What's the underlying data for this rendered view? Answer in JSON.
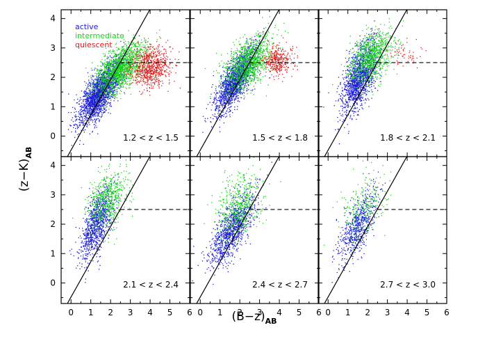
{
  "chart_data": {
    "type": "scatter",
    "title": "",
    "xlabel": "(B−z)",
    "xlabel_sub": "AB",
    "ylabel": "(z−K)",
    "ylabel_sub": "AB",
    "xlim": [
      -0.5,
      6
    ],
    "ylim": [
      -0.7,
      4.3
    ],
    "x_ticks": [
      "0",
      "1",
      "2",
      "3",
      "4",
      "5",
      "6"
    ],
    "y_ticks": [
      "0",
      "1",
      "2",
      "3",
      "4"
    ],
    "legend": {
      "placement": "top-left of first panel",
      "entries": [
        {
          "label": "active",
          "color": "#1c1cd8"
        },
        {
          "label": "intermediate",
          "color": "#19d519"
        },
        {
          "label": "quiescent",
          "color": "#e01c1c"
        }
      ]
    },
    "selection_lines": {
      "diagonal": {
        "slope": 1.2,
        "intercept": -0.48
      },
      "horizontal_dashed": {
        "y": 2.5,
        "x_from": 2.5
      }
    },
    "panels": [
      {
        "label": "1.2 < z < 1.5",
        "clusters": [
          {
            "series": "active",
            "color": "#1c1cd8",
            "n": 2200,
            "cx": 1.5,
            "cy": 1.5,
            "sx": 0.55,
            "sy": 0.55,
            "rho": 0.75
          },
          {
            "series": "intermediate",
            "color": "#19d519",
            "n": 1500,
            "cx": 2.5,
            "cy": 2.3,
            "sx": 0.65,
            "sy": 0.45,
            "rho": 0.6
          },
          {
            "series": "quiescent",
            "color": "#e01c1c",
            "n": 750,
            "cx": 4.0,
            "cy": 2.35,
            "sx": 0.5,
            "sy": 0.35,
            "rho": 0.1
          }
        ]
      },
      {
        "label": "1.5 < z < 1.8",
        "clusters": [
          {
            "series": "active",
            "color": "#1c1cd8",
            "n": 1700,
            "cx": 1.8,
            "cy": 1.9,
            "sx": 0.5,
            "sy": 0.55,
            "rho": 0.75
          },
          {
            "series": "intermediate",
            "color": "#19d519",
            "n": 1200,
            "cx": 2.4,
            "cy": 2.5,
            "sx": 0.6,
            "sy": 0.45,
            "rho": 0.5
          },
          {
            "series": "quiescent",
            "color": "#e01c1c",
            "n": 350,
            "cx": 3.9,
            "cy": 2.55,
            "sx": 0.4,
            "sy": 0.25,
            "rho": 0.0
          }
        ]
      },
      {
        "label": "1.8 < z < 2.1",
        "clusters": [
          {
            "series": "active",
            "color": "#1c1cd8",
            "n": 1500,
            "cx": 1.6,
            "cy": 2.0,
            "sx": 0.45,
            "sy": 0.6,
            "rho": 0.6
          },
          {
            "series": "intermediate",
            "color": "#19d519",
            "n": 900,
            "cx": 2.2,
            "cy": 2.7,
            "sx": 0.55,
            "sy": 0.45,
            "rho": 0.4
          },
          {
            "series": "quiescent",
            "color": "#e01c1c",
            "n": 60,
            "cx": 3.8,
            "cy": 2.8,
            "sx": 0.4,
            "sy": 0.25,
            "rho": 0.0
          }
        ]
      },
      {
        "label": "2.1 < z < 2.4",
        "clusters": [
          {
            "series": "active",
            "color": "#1c1cd8",
            "n": 1000,
            "cx": 1.3,
            "cy": 2.0,
            "sx": 0.4,
            "sy": 0.6,
            "rho": 0.6
          },
          {
            "series": "intermediate",
            "color": "#19d519",
            "n": 600,
            "cx": 1.8,
            "cy": 2.8,
            "sx": 0.5,
            "sy": 0.5,
            "rho": 0.3
          }
        ]
      },
      {
        "label": "2.4 < z < 2.7",
        "clusters": [
          {
            "series": "active",
            "color": "#1c1cd8",
            "n": 1100,
            "cx": 1.6,
            "cy": 1.8,
            "sx": 0.55,
            "sy": 0.6,
            "rho": 0.7
          },
          {
            "series": "intermediate",
            "color": "#19d519",
            "n": 500,
            "cx": 2.0,
            "cy": 2.6,
            "sx": 0.55,
            "sy": 0.55,
            "rho": 0.3
          }
        ]
      },
      {
        "label": "2.7 < z < 3.0",
        "clusters": [
          {
            "series": "active",
            "color": "#1c1cd8",
            "n": 650,
            "cx": 1.5,
            "cy": 1.9,
            "sx": 0.5,
            "sy": 0.6,
            "rho": 0.7
          },
          {
            "series": "intermediate",
            "color": "#19d519",
            "n": 250,
            "cx": 1.8,
            "cy": 2.6,
            "sx": 0.55,
            "sy": 0.55,
            "rho": 0.3
          }
        ]
      }
    ]
  }
}
